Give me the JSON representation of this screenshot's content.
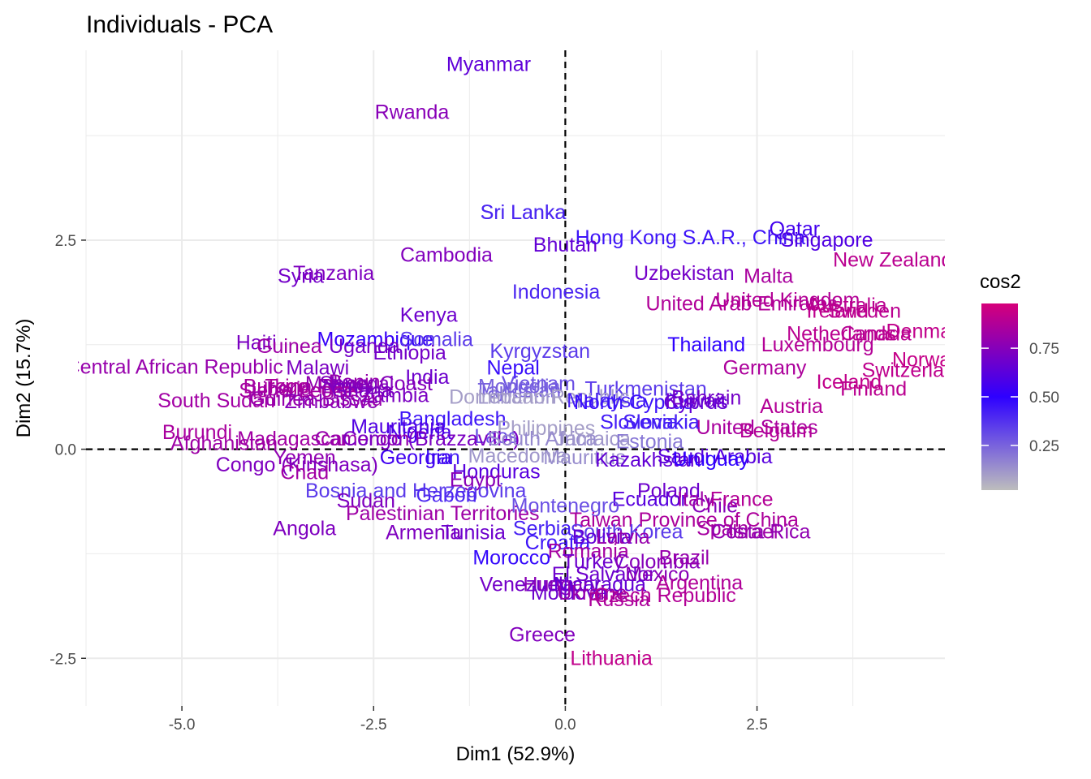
{
  "chart_data": {
    "type": "scatter",
    "title": "Individuals - PCA",
    "xlabel": "Dim1 (52.9%)",
    "ylabel": "Dim2 (15.7%)",
    "xlim": [
      -6.25,
      4.95
    ],
    "ylim": [
      -3.07,
      4.77
    ],
    "xticks": [
      -5.0,
      -2.5,
      0.0,
      2.5
    ],
    "xtick_labels": [
      "-5.0",
      "-2.5",
      "0.0",
      "2.5"
    ],
    "yticks": [
      -2.5,
      0.0,
      2.5
    ],
    "ytick_labels": [
      "-2.5",
      "0.0",
      "2.5"
    ],
    "grid": true,
    "reference_lines": {
      "x": 0,
      "y": 0,
      "style": "dashed"
    },
    "color_scale": {
      "name": "cos2",
      "breaks": [
        0.25,
        0.5,
        0.75
      ],
      "break_labels": [
        "0.25",
        "0.50",
        "0.75"
      ],
      "domain": [
        0.02,
        0.98
      ],
      "colors": [
        "#BDBDBD",
        "#2E00FF",
        "#D6007A"
      ]
    },
    "points": [
      {
        "label": "Myanmar",
        "x": -1.0,
        "y": 4.6,
        "cos2": 0.64
      },
      {
        "label": "Rwanda",
        "x": -2.0,
        "y": 4.03,
        "cos2": 0.76
      },
      {
        "label": "Sri Lanka",
        "x": -0.55,
        "y": 2.83,
        "cos2": 0.4
      },
      {
        "label": "Hong Kong S.A.R., China",
        "x": 1.63,
        "y": 2.53,
        "cos2": 0.45
      },
      {
        "label": "Qatar",
        "x": 2.99,
        "y": 2.63,
        "cos2": 0.56
      },
      {
        "label": "Singapore",
        "x": 3.41,
        "y": 2.5,
        "cos2": 0.6
      },
      {
        "label": "Bhutan",
        "x": 0.0,
        "y": 2.44,
        "cos2": 0.65
      },
      {
        "label": "Cambodia",
        "x": -1.55,
        "y": 2.32,
        "cos2": 0.74
      },
      {
        "label": "New Zealand",
        "x": 4.27,
        "y": 2.26,
        "cos2": 0.9
      },
      {
        "label": "Uzbekistan",
        "x": 1.55,
        "y": 2.1,
        "cos2": 0.7
      },
      {
        "label": "Malta",
        "x": 2.65,
        "y": 2.07,
        "cos2": 0.85
      },
      {
        "label": "Syria",
        "x": -3.45,
        "y": 2.07,
        "cos2": 0.7
      },
      {
        "label": "Tanzania",
        "x": -3.02,
        "y": 2.1,
        "cos2": 0.73
      },
      {
        "label": "Indonesia",
        "x": -0.12,
        "y": 1.88,
        "cos2": 0.4
      },
      {
        "label": "United Kingdom",
        "x": 2.9,
        "y": 1.78,
        "cos2": 0.88
      },
      {
        "label": "United Arab Emirates",
        "x": 2.3,
        "y": 1.74,
        "cos2": 0.87
      },
      {
        "label": "Australia",
        "x": 3.68,
        "y": 1.72,
        "cos2": 0.9
      },
      {
        "label": "Ireland",
        "x": 3.55,
        "y": 1.65,
        "cos2": 0.91
      },
      {
        "label": "Sweden",
        "x": 3.9,
        "y": 1.65,
        "cos2": 0.9
      },
      {
        "label": "Kenya",
        "x": -1.78,
        "y": 1.6,
        "cos2": 0.68
      },
      {
        "label": "Denmark",
        "x": 4.72,
        "y": 1.41,
        "cos2": 0.92
      },
      {
        "label": "Netherlands",
        "x": 3.6,
        "y": 1.38,
        "cos2": 0.9
      },
      {
        "label": "Canada",
        "x": 4.05,
        "y": 1.38,
        "cos2": 0.89
      },
      {
        "label": "Mozambique",
        "x": -2.48,
        "y": 1.31,
        "cos2": 0.52
      },
      {
        "label": "Somalia",
        "x": -1.68,
        "y": 1.31,
        "cos2": 0.35
      },
      {
        "label": "Haiti",
        "x": -4.03,
        "y": 1.27,
        "cos2": 0.72
      },
      {
        "label": "Guinea",
        "x": -3.6,
        "y": 1.23,
        "cos2": 0.82
      },
      {
        "label": "Uganda",
        "x": -2.62,
        "y": 1.23,
        "cos2": 0.7
      },
      {
        "label": "Thailand",
        "x": 1.84,
        "y": 1.25,
        "cos2": 0.5
      },
      {
        "label": "Luxembourg",
        "x": 3.29,
        "y": 1.25,
        "cos2": 0.88
      },
      {
        "label": "Ethiopia",
        "x": -2.03,
        "y": 1.15,
        "cos2": 0.7
      },
      {
        "label": "Kyrgyzstan",
        "x": -0.33,
        "y": 1.17,
        "cos2": 0.35
      },
      {
        "label": "Norway",
        "x": 4.71,
        "y": 1.07,
        "cos2": 0.93
      },
      {
        "label": "Central African Republic",
        "x": -5.1,
        "y": 0.98,
        "cos2": 0.8
      },
      {
        "label": "Malawi",
        "x": -3.23,
        "y": 0.97,
        "cos2": 0.72
      },
      {
        "label": "Nepal",
        "x": -0.68,
        "y": 0.97,
        "cos2": 0.47
      },
      {
        "label": "Germany",
        "x": 2.6,
        "y": 0.97,
        "cos2": 0.86
      },
      {
        "label": "Switzerland",
        "x": 4.55,
        "y": 0.94,
        "cos2": 0.91
      },
      {
        "label": "India",
        "x": -1.8,
        "y": 0.86,
        "cos2": 0.68
      },
      {
        "label": "Benin",
        "x": -2.75,
        "y": 0.8,
        "cos2": 0.8
      },
      {
        "label": "Iceland",
        "x": 3.7,
        "y": 0.8,
        "cos2": 0.92
      },
      {
        "label": "Togo",
        "x": -3.63,
        "y": 0.75,
        "cos2": 0.86
      },
      {
        "label": "Burkina Faso",
        "x": -3.42,
        "y": 0.75,
        "cos2": 0.85
      },
      {
        "label": "Mali",
        "x": -3.15,
        "y": 0.78,
        "cos2": 0.78
      },
      {
        "label": "Liberia",
        "x": -3.7,
        "y": 0.72,
        "cos2": 0.82
      },
      {
        "label": "Niger",
        "x": -2.85,
        "y": 0.75,
        "cos2": 0.75
      },
      {
        "label": "Senegal",
        "x": -2.72,
        "y": 0.78,
        "cos2": 0.74
      },
      {
        "label": "Ivory Coast",
        "x": -2.4,
        "y": 0.78,
        "cos2": 0.75
      },
      {
        "label": "Vietnam",
        "x": -0.35,
        "y": 0.78,
        "cos2": 0.3
      },
      {
        "label": "Mongolia",
        "x": -0.6,
        "y": 0.75,
        "cos2": 0.25
      },
      {
        "label": "Turkmenistan",
        "x": 1.05,
        "y": 0.72,
        "cos2": 0.35
      },
      {
        "label": "Finland",
        "x": 4.02,
        "y": 0.72,
        "cos2": 0.9
      },
      {
        "label": "Sierra Leone",
        "x": -3.5,
        "y": 0.7,
        "cos2": 0.84
      },
      {
        "label": "Ghana",
        "x": -2.65,
        "y": 0.7,
        "cos2": 0.72
      },
      {
        "label": "Tajikistan",
        "x": -0.6,
        "y": 0.7,
        "cos2": 0.25
      },
      {
        "label": "Zambia",
        "x": -2.22,
        "y": 0.64,
        "cos2": 0.72
      },
      {
        "label": "Lebanon",
        "x": -0.63,
        "y": 0.62,
        "cos2": 0.12
      },
      {
        "label": "Dominican Republic",
        "x": -0.34,
        "y": 0.62,
        "cos2": 0.1
      },
      {
        "label": "Malaysia",
        "x": 0.54,
        "y": 0.58,
        "cos2": 0.42
      },
      {
        "label": "North Cyprus",
        "x": 0.89,
        "y": 0.56,
        "cos2": 0.46
      },
      {
        "label": "Bahrain",
        "x": 1.84,
        "y": 0.61,
        "cos2": 0.7
      },
      {
        "label": "Kuwait",
        "x": 1.7,
        "y": 0.58,
        "cos2": 0.68
      },
      {
        "label": "Cyprus",
        "x": 1.7,
        "y": 0.56,
        "cos2": 0.65
      },
      {
        "label": "Zimbabwe",
        "x": -3.05,
        "y": 0.57,
        "cos2": 0.75
      },
      {
        "label": "South Sudan",
        "x": -4.55,
        "y": 0.58,
        "cos2": 0.83
      },
      {
        "label": "Guinea-Bissau",
        "x": -3.25,
        "y": 0.6,
        "cos2": 0.8
      },
      {
        "label": "Austria",
        "x": 2.95,
        "y": 0.51,
        "cos2": 0.88
      },
      {
        "label": "Bangladesh",
        "x": -1.47,
        "y": 0.36,
        "cos2": 0.45
      },
      {
        "label": "Mauritania",
        "x": -2.18,
        "y": 0.27,
        "cos2": 0.6
      },
      {
        "label": "Slovenia",
        "x": 0.96,
        "y": 0.32,
        "cos2": 0.44
      },
      {
        "label": "Slovakia",
        "x": 1.25,
        "y": 0.32,
        "cos2": 0.42
      },
      {
        "label": "United States",
        "x": 2.5,
        "y": 0.26,
        "cos2": 0.85
      },
      {
        "label": "Belgium",
        "x": 2.75,
        "y": 0.22,
        "cos2": 0.88
      },
      {
        "label": "Philippines",
        "x": -0.25,
        "y": 0.25,
        "cos2": 0.1
      },
      {
        "label": "Estonia",
        "x": 1.1,
        "y": 0.09,
        "cos2": 0.2
      },
      {
        "label": "Burundi",
        "x": -4.8,
        "y": 0.2,
        "cos2": 0.85
      },
      {
        "label": "Nigeria",
        "x": -1.9,
        "y": 0.2,
        "cos2": 0.58
      },
      {
        "label": "Laos",
        "x": -0.9,
        "y": 0.15,
        "cos2": 0.3
      },
      {
        "label": "Madagascar",
        "x": -3.55,
        "y": 0.12,
        "cos2": 0.83
      },
      {
        "label": "Cameroon",
        "x": -2.65,
        "y": 0.12,
        "cos2": 0.8
      },
      {
        "label": "Congo (Brazzaville)",
        "x": -1.75,
        "y": 0.12,
        "cos2": 0.72
      },
      {
        "label": "Afghanistan",
        "x": -4.45,
        "y": 0.07,
        "cos2": 0.82
      },
      {
        "label": "Sri Lanka",
        "x": -0.55,
        "y": 2.83,
        "cos2": 0.4
      },
      {
        "label": "South Africa",
        "x": -0.3,
        "y": 0.12,
        "cos2": 0.15
      },
      {
        "label": "Jamaica",
        "x": 0.36,
        "y": 0.12,
        "cos2": 0.12
      },
      {
        "label": "Yemen",
        "x": -3.4,
        "y": -0.1,
        "cos2": 0.78
      },
      {
        "label": "Mauritius",
        "x": 0.25,
        "y": -0.1,
        "cos2": 0.14
      },
      {
        "label": "Iran",
        "x": -1.6,
        "y": -0.1,
        "cos2": 0.43
      },
      {
        "label": "Macedonia",
        "x": -0.62,
        "y": -0.08,
        "cos2": 0.12
      },
      {
        "label": "Saudi Arabia",
        "x": 1.95,
        "y": -0.09,
        "cos2": 0.62
      },
      {
        "label": "Kazakhstan",
        "x": 1.08,
        "y": -0.13,
        "cos2": 0.65
      },
      {
        "label": "Uruguay",
        "x": 1.9,
        "y": -0.12,
        "cos2": 0.5
      },
      {
        "label": "Georgia",
        "x": -1.95,
        "y": -0.1,
        "cos2": 0.55
      },
      {
        "label": "Congo (Kinshasa)",
        "x": -3.5,
        "y": -0.19,
        "cos2": 0.73
      },
      {
        "label": "Honduras",
        "x": -0.9,
        "y": -0.27,
        "cos2": 0.62
      },
      {
        "label": "Chad",
        "x": -3.4,
        "y": -0.28,
        "cos2": 0.83
      },
      {
        "label": "Egypt",
        "x": -1.17,
        "y": -0.37,
        "cos2": 0.76
      },
      {
        "label": "Bosnia and Herzegovina",
        "x": -1.95,
        "y": -0.5,
        "cos2": 0.35
      },
      {
        "label": "Gabon",
        "x": -1.55,
        "y": -0.55,
        "cos2": 0.4
      },
      {
        "label": "Sudan",
        "x": -2.6,
        "y": -0.62,
        "cos2": 0.73
      },
      {
        "label": "Ecuador",
        "x": 1.1,
        "y": -0.6,
        "cos2": 0.62
      },
      {
        "label": "Poland",
        "x": 1.35,
        "y": -0.5,
        "cos2": 0.68
      },
      {
        "label": "Chile",
        "x": 1.95,
        "y": -0.68,
        "cos2": 0.75
      },
      {
        "label": "France",
        "x": 2.3,
        "y": -0.6,
        "cos2": 0.88
      },
      {
        "label": "Italy",
        "x": 1.7,
        "y": -0.6,
        "cos2": 0.82
      },
      {
        "label": "Palestinian Territories",
        "x": -1.6,
        "y": -0.77,
        "cos2": 0.82
      },
      {
        "label": "Montenegro",
        "x": 0.0,
        "y": -0.68,
        "cos2": 0.3
      },
      {
        "label": "Taiwan Province of China",
        "x": 1.55,
        "y": -0.85,
        "cos2": 0.86
      },
      {
        "label": "Angola",
        "x": -3.4,
        "y": -0.95,
        "cos2": 0.73
      },
      {
        "label": "Armenia",
        "x": -1.85,
        "y": -1.0,
        "cos2": 0.73
      },
      {
        "label": "Tunisia",
        "x": -1.2,
        "y": -1.0,
        "cos2": 0.68
      },
      {
        "label": "Serbia",
        "x": -0.3,
        "y": -0.95,
        "cos2": 0.42
      },
      {
        "label": "South Korea",
        "x": 0.8,
        "y": -0.99,
        "cos2": 0.35
      },
      {
        "label": "Spain",
        "x": 2.05,
        "y": -0.95,
        "cos2": 0.84
      },
      {
        "label": "Israel",
        "x": 2.45,
        "y": -0.99,
        "cos2": 0.82
      },
      {
        "label": "Costa Rica",
        "x": 2.55,
        "y": -0.99,
        "cos2": 0.78
      },
      {
        "label": "Croatia",
        "x": -0.1,
        "y": -1.12,
        "cos2": 0.45
      },
      {
        "label": "Bolivia",
        "x": 0.48,
        "y": -1.05,
        "cos2": 0.65
      },
      {
        "label": "Latvia",
        "x": 0.75,
        "y": -1.05,
        "cos2": 0.8
      },
      {
        "label": "Morocco",
        "x": -0.7,
        "y": -1.3,
        "cos2": 0.48
      },
      {
        "label": "Romania",
        "x": 0.3,
        "y": -1.22,
        "cos2": 0.84
      },
      {
        "label": "Turkey",
        "x": 0.36,
        "y": -1.35,
        "cos2": 0.68
      },
      {
        "label": "Colombia",
        "x": 1.2,
        "y": -1.35,
        "cos2": 0.75
      },
      {
        "label": "Brazil",
        "x": 1.55,
        "y": -1.3,
        "cos2": 0.8
      },
      {
        "label": "El Salvador",
        "x": 0.5,
        "y": -1.5,
        "cos2": 0.68
      },
      {
        "label": "Mexico",
        "x": 1.2,
        "y": -1.5,
        "cos2": 0.76
      },
      {
        "label": "Argentina",
        "x": 1.75,
        "y": -1.6,
        "cos2": 0.87
      },
      {
        "label": "Venezuela",
        "x": -0.5,
        "y": -1.62,
        "cos2": 0.7
      },
      {
        "label": "Hungary",
        "x": -0.05,
        "y": -1.62,
        "cos2": 0.76
      },
      {
        "label": "Nicaragua",
        "x": 0.45,
        "y": -1.62,
        "cos2": 0.65
      },
      {
        "label": "Slovakia",
        "x": 1.25,
        "y": 0.32,
        "cos2": 0.42
      },
      {
        "label": "Moldova",
        "x": 0.05,
        "y": -1.72,
        "cos2": 0.68
      },
      {
        "label": "Ukraine",
        "x": 0.35,
        "y": -1.72,
        "cos2": 0.8
      },
      {
        "label": "Czech Republic",
        "x": 1.3,
        "y": -1.75,
        "cos2": 0.88
      },
      {
        "label": "Russia",
        "x": 0.7,
        "y": -1.8,
        "cos2": 0.86
      },
      {
        "label": "Greece",
        "x": -0.3,
        "y": -2.22,
        "cos2": 0.74
      },
      {
        "label": "Lithuania",
        "x": 0.6,
        "y": -2.5,
        "cos2": 0.92
      }
    ]
  }
}
